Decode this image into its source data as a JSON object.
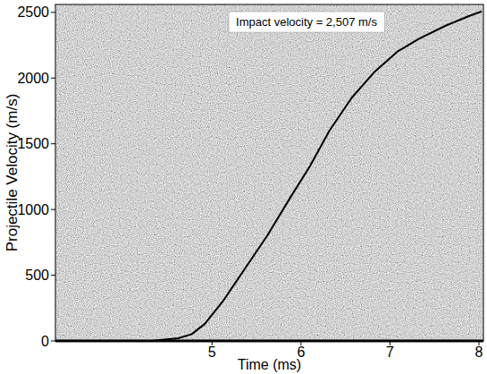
{
  "chart_data": {
    "type": "line",
    "x_label": "Time (ms)",
    "y_label": "Projectile Velocity (m/s)",
    "annotations": [
      "Impact velocity = 2,507 m/s"
    ],
    "x": [
      4.32,
      4.62,
      4.77,
      4.92,
      5.12,
      5.37,
      5.62,
      5.87,
      6.1,
      6.32,
      6.57,
      6.83,
      7.08,
      7.33,
      7.63,
      7.88,
      8.03
    ],
    "values": [
      0,
      20,
      50,
      130,
      300,
      550,
      800,
      1080,
      1330,
      1600,
      1850,
      2050,
      2200,
      2300,
      2400,
      2470,
      2507
    ],
    "color": "#000000",
    "xlim": [
      3.24,
      8.05
    ],
    "ylim": [
      0,
      2560
    ],
    "xticks": [
      5,
      6,
      7,
      8
    ],
    "yticks": [
      0,
      500,
      1000,
      1500,
      2000,
      2500
    ],
    "grid": false
  }
}
